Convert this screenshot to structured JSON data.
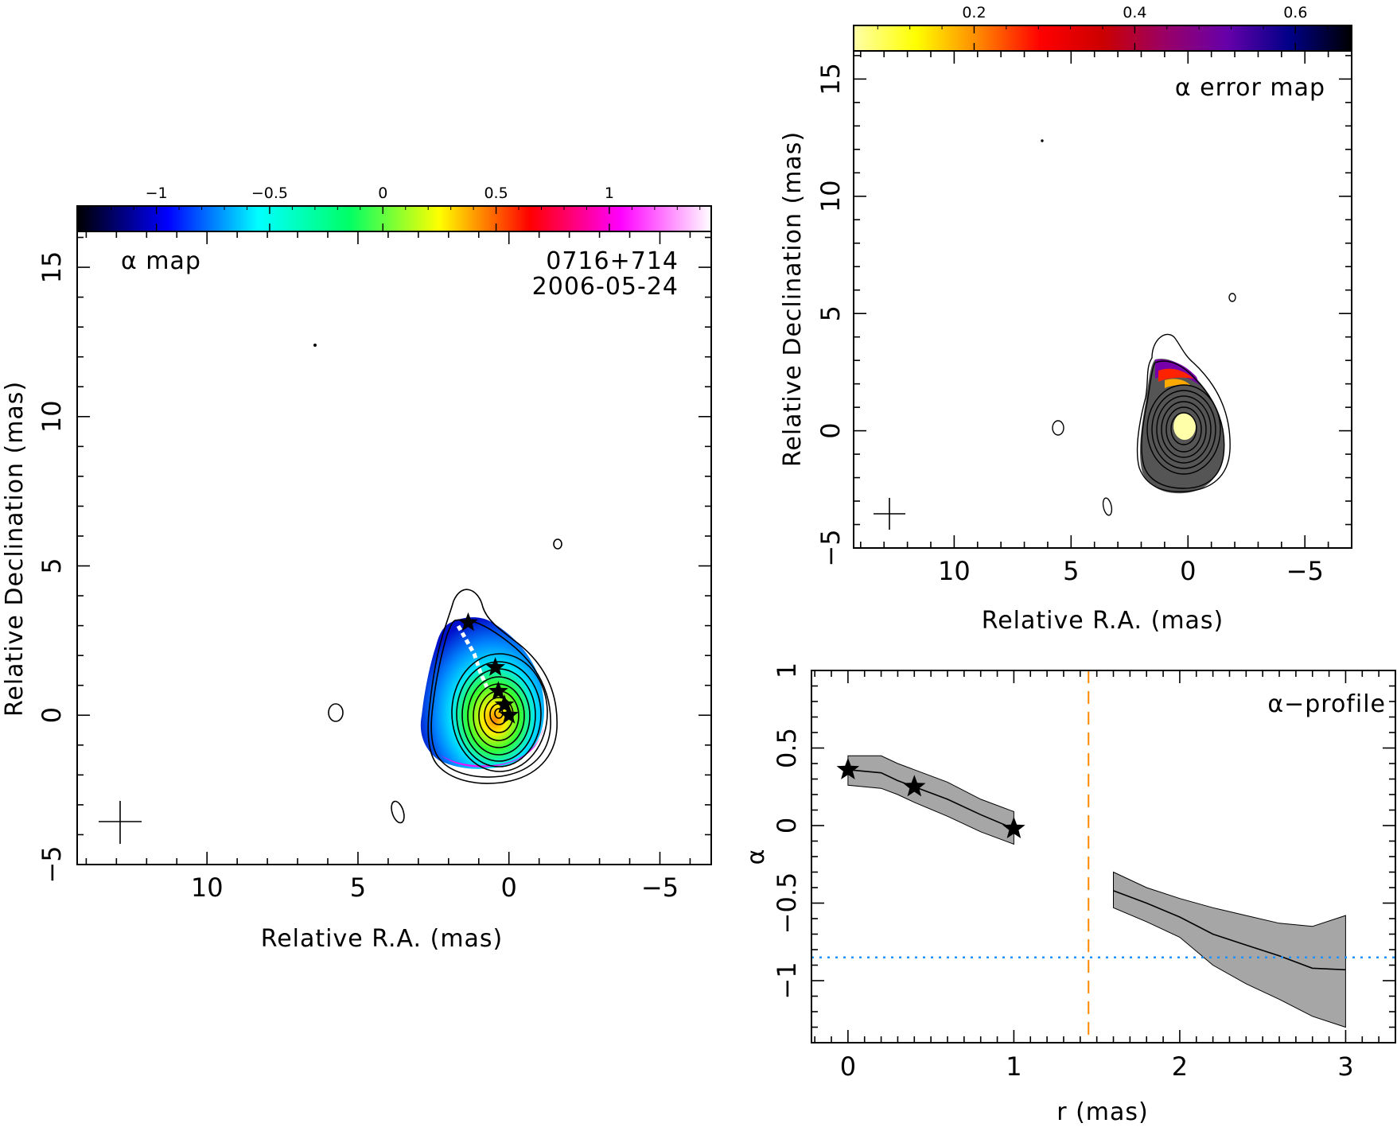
{
  "chart_data": [
    {
      "type": "heatmap",
      "panel_label": "α map",
      "source": "0716+714",
      "date": "2006-05-24",
      "xlabel": "Relative R.A. (mas)",
      "ylabel": "Relative Declination (mas)",
      "xlim": [
        14.3,
        -6.7
      ],
      "ylim": [
        -5,
        16.2
      ],
      "x_ticks": [
        "10",
        "5",
        "0",
        "−5"
      ],
      "x_tick_values": [
        10,
        5,
        0,
        -5
      ],
      "y_ticks": [
        "−5",
        "0",
        "5",
        "10",
        "15"
      ],
      "y_tick_values": [
        -5,
        0,
        5,
        10,
        15
      ],
      "colorbar": {
        "range": [
          -1.35,
          1.45
        ],
        "ticks": [
          "−1",
          "−0.5",
          "0",
          "0.5",
          "1"
        ],
        "tick_values": [
          -1,
          -0.5,
          0,
          0.5,
          1
        ],
        "colors": [
          "#000000",
          "#0000ff",
          "#00ffff",
          "#00ff66",
          "#ffff00",
          "#ff0000",
          "#ff00ff",
          "#ffffff"
        ]
      },
      "core_position": [
        0,
        0
      ],
      "star_positions": [
        [
          1.35,
          3.1
        ],
        [
          0.45,
          1.6
        ],
        [
          0.35,
          0.8
        ],
        [
          0.15,
          0.35
        ],
        [
          0,
          0
        ]
      ],
      "grid": false,
      "legend": "none"
    },
    {
      "type": "heatmap",
      "panel_label": "α error map",
      "xlabel": "Relative R.A. (mas)",
      "ylabel": "Relative Declination (mas)",
      "xlim": [
        14.3,
        -7.0
      ],
      "ylim": [
        -5,
        16.2
      ],
      "x_ticks": [
        "10",
        "5",
        "0",
        "−5"
      ],
      "x_tick_values": [
        10,
        5,
        0,
        -5
      ],
      "y_ticks": [
        "−5",
        "0",
        "5",
        "10",
        "15"
      ],
      "y_tick_values": [
        -5,
        0,
        5,
        10,
        15
      ],
      "colorbar": {
        "range": [
          0.05,
          0.67
        ],
        "ticks": [
          "0.2",
          "0.4",
          "0.6"
        ],
        "tick_values": [
          0.2,
          0.4,
          0.6
        ],
        "colors": [
          "#ffffaa",
          "#ffff00",
          "#ff8800",
          "#ff0000",
          "#cc0000",
          "#990066",
          "#6600aa",
          "#000088",
          "#000000"
        ]
      },
      "grid": false,
      "legend": "none"
    },
    {
      "type": "line",
      "panel_label": "α−profile",
      "xlabel": "r (mas)",
      "ylabel": "α",
      "xlim": [
        -0.22,
        3.3
      ],
      "ylim": [
        -1.4,
        1.0
      ],
      "x_ticks": [
        "0",
        "1",
        "2",
        "3"
      ],
      "x_tick_values": [
        0,
        1,
        2,
        3
      ],
      "y_ticks": [
        "1",
        "0.5",
        "0",
        "−0.5",
        "−1"
      ],
      "y_tick_values": [
        1,
        0.5,
        0,
        -0.5,
        -1
      ],
      "series": [
        {
          "x": [
            0,
            0.2,
            0.3,
            0.4,
            0.6,
            0.8,
            1.0
          ],
          "values": [
            0.36,
            0.34,
            0.29,
            0.25,
            0.17,
            0.07,
            -0.02
          ],
          "upper": [
            0.45,
            0.45,
            0.4,
            0.36,
            0.28,
            0.17,
            0.09
          ],
          "lower": [
            0.26,
            0.24,
            0.2,
            0.15,
            0.06,
            -0.04,
            -0.12
          ]
        },
        {
          "x": [
            1.6,
            1.8,
            2.0,
            2.2,
            2.4,
            2.6,
            2.8,
            3.0
          ],
          "values": [
            -0.42,
            -0.5,
            -0.59,
            -0.7,
            -0.77,
            -0.84,
            -0.92,
            -0.93
          ],
          "upper": [
            -0.3,
            -0.4,
            -0.47,
            -0.53,
            -0.58,
            -0.63,
            -0.65,
            -0.58
          ],
          "lower": [
            -0.53,
            -0.62,
            -0.72,
            -0.9,
            -1.02,
            -1.12,
            -1.23,
            -1.3
          ]
        }
      ],
      "stars": [
        [
          0,
          0.36
        ],
        [
          0.4,
          0.25
        ],
        [
          1.0,
          -0.02
        ]
      ],
      "vline_x": 1.45,
      "hline_y": -0.85,
      "colors": {
        "band": "#a6a6a6",
        "vline": "#ff8800",
        "hline": "#1e90ff"
      },
      "grid": false,
      "legend": "none"
    }
  ]
}
